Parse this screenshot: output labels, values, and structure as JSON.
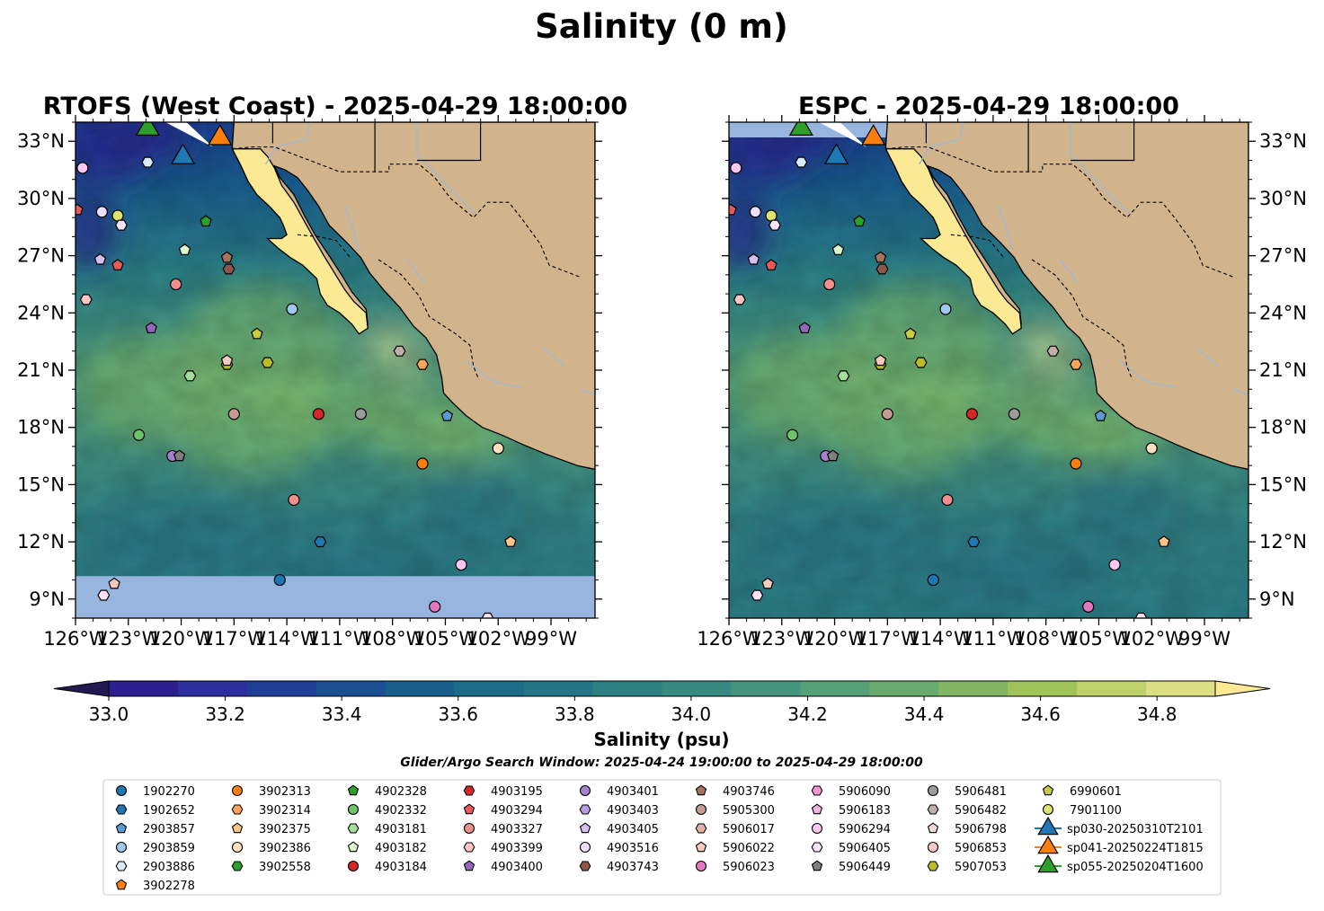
{
  "title": "Salinity (0 m)",
  "panels": [
    {
      "title": "RTOFS (West Coast) - 2025-04-29 18:00:00",
      "tick_side": "left"
    },
    {
      "title": "ESPC - 2025-04-29 18:00:00",
      "tick_side": "right"
    }
  ],
  "colors": {
    "land": "#d2b48c",
    "baja": "#fce994",
    "nodata": "#97b5df",
    "river": "#9fb7d4",
    "colormap": [
      "#231a53",
      "#2d1e8e",
      "#2b2e9c",
      "#1f3f97",
      "#1b4f91",
      "#18608b",
      "#1d6c87",
      "#247585",
      "#2d8082",
      "#368a7f",
      "#43957c",
      "#55a077",
      "#6aaa6e",
      "#83b663",
      "#a0c459",
      "#bfd16a",
      "#dbdf83",
      "#fde994"
    ]
  },
  "colorbar": {
    "label": "Salinity (psu)",
    "ticks": [
      "33.0",
      "33.2",
      "33.4",
      "33.6",
      "33.8",
      "34.0",
      "34.2",
      "34.4",
      "34.6",
      "34.8"
    ]
  },
  "search_window": "Glider/Argo Search Window: 2025-04-24 19:00:00 to 2025-04-29 18:00:00",
  "chart_data": {
    "type": "scatter",
    "variable": "Salinity (psu)",
    "depth": "0 m",
    "xlabel": "",
    "ylabel": "",
    "xlim": [
      -126,
      -96.5
    ],
    "ylim": [
      8,
      34
    ],
    "xticks": [
      "126°W",
      "123°W",
      "120°W",
      "117°W",
      "114°W",
      "111°W",
      "108°W",
      "105°W",
      "102°W",
      "99°W"
    ],
    "yticks": [
      "9°N",
      "12°N",
      "15°N",
      "18°N",
      "21°N",
      "24°N",
      "27°N",
      "30°N",
      "33°N"
    ],
    "color_range": [
      32.9,
      34.9
    ],
    "legend": [
      {
        "name": "1902270",
        "marker": "circle",
        "color": "#1f77b4"
      },
      {
        "name": "1902652",
        "marker": "hexagon",
        "color": "#1f77b4"
      },
      {
        "name": "2903857",
        "marker": "pentagon",
        "color": "#5a9bd5"
      },
      {
        "name": "2903859",
        "marker": "circle",
        "color": "#9ec9ec"
      },
      {
        "name": "2903886",
        "marker": "hexagon",
        "color": "#d7ecf8"
      },
      {
        "name": "3902278",
        "marker": "pentagon",
        "color": "#ff7f0e"
      },
      {
        "name": "3902313",
        "marker": "circle",
        "color": "#ff7f0e"
      },
      {
        "name": "3902314",
        "marker": "hexagon",
        "color": "#ffa55a"
      },
      {
        "name": "3902375",
        "marker": "pentagon",
        "color": "#ffc587"
      },
      {
        "name": "3902386",
        "marker": "circle",
        "color": "#ffe0c2"
      },
      {
        "name": "3902558",
        "marker": "hexagon",
        "color": "#2ca02c"
      },
      {
        "name": "4902328",
        "marker": "pentagon",
        "color": "#2ca02c"
      },
      {
        "name": "4902332",
        "marker": "circle",
        "color": "#6cc36c"
      },
      {
        "name": "4903181",
        "marker": "hexagon",
        "color": "#a6dc9c"
      },
      {
        "name": "4903182",
        "marker": "pentagon",
        "color": "#dff7cf"
      },
      {
        "name": "4903184",
        "marker": "circle",
        "color": "#d62728"
      },
      {
        "name": "4903195",
        "marker": "hexagon",
        "color": "#d62728"
      },
      {
        "name": "4903294",
        "marker": "pentagon",
        "color": "#e8595a"
      },
      {
        "name": "4903327",
        "marker": "circle",
        "color": "#f08f8e"
      },
      {
        "name": "4903399",
        "marker": "hexagon",
        "color": "#ffc6c4"
      },
      {
        "name": "4903400",
        "marker": "pentagon",
        "color": "#9467bd"
      },
      {
        "name": "4903401",
        "marker": "circle",
        "color": "#a57fd0"
      },
      {
        "name": "4903403",
        "marker": "hexagon",
        "color": "#bc9ee0"
      },
      {
        "name": "4903405",
        "marker": "pentagon",
        "color": "#d4bfee"
      },
      {
        "name": "4903516",
        "marker": "circle",
        "color": "#ecdfff"
      },
      {
        "name": "4903743",
        "marker": "hexagon",
        "color": "#8c564b"
      },
      {
        "name": "4903746",
        "marker": "pentagon",
        "color": "#a8725f"
      },
      {
        "name": "5905300",
        "marker": "circle",
        "color": "#c49c94"
      },
      {
        "name": "5906017",
        "marker": "hexagon",
        "color": "#e2b2a4"
      },
      {
        "name": "5906022",
        "marker": "pentagon",
        "color": "#f7cbbc"
      },
      {
        "name": "5906023",
        "marker": "circle",
        "color": "#e377c2"
      },
      {
        "name": "5906090",
        "marker": "hexagon",
        "color": "#ef96d8"
      },
      {
        "name": "5906183",
        "marker": "pentagon",
        "color": "#f7b2e4"
      },
      {
        "name": "5906294",
        "marker": "circle",
        "color": "#fbc9ef"
      },
      {
        "name": "5906405",
        "marker": "hexagon",
        "color": "#fde3f6"
      },
      {
        "name": "5906449",
        "marker": "pentagon",
        "color": "#7f7f7f"
      },
      {
        "name": "5906481",
        "marker": "circle",
        "color": "#9c9c9c"
      },
      {
        "name": "5906482",
        "marker": "hexagon",
        "color": "#c0aea8"
      },
      {
        "name": "5906798",
        "marker": "pentagon",
        "color": "#f2dcd8"
      },
      {
        "name": "5906853",
        "marker": "circle",
        "color": "#ffcaca"
      },
      {
        "name": "5907053",
        "marker": "hexagon",
        "color": "#bcbd22"
      },
      {
        "name": "6990601",
        "marker": "pentagon",
        "color": "#c9cc3f"
      },
      {
        "name": "7901100",
        "marker": "circle",
        "color": "#dde36f"
      },
      {
        "name": "sp030-20250310T2101",
        "marker": "triangle",
        "color": "#1f77b4"
      },
      {
        "name": "sp041-20250224T1815",
        "marker": "triangle",
        "color": "#ff7f0e"
      },
      {
        "name": "sp055-20250204T1600",
        "marker": "triangle",
        "color": "#2ca02c"
      }
    ],
    "points": [
      {
        "lon": -125.6,
        "lat": 31.6,
        "marker": "circle",
        "color": "#fbc9ef"
      },
      {
        "lon": -125.9,
        "lat": 29.4,
        "marker": "pentagon",
        "color": "#e8595a"
      },
      {
        "lon": -124.5,
        "lat": 29.3,
        "marker": "circle",
        "color": "#ecdfff"
      },
      {
        "lon": -123.6,
        "lat": 29.1,
        "marker": "circle",
        "color": "#dde36f"
      },
      {
        "lon": -123.4,
        "lat": 28.6,
        "marker": "hexagon",
        "color": "#fde3f6"
      },
      {
        "lon": -121.9,
        "lat": 31.9,
        "marker": "hexagon",
        "color": "#d7ecf8"
      },
      {
        "lon": -118.6,
        "lat": 28.8,
        "marker": "pentagon",
        "color": "#2ca02c"
      },
      {
        "lon": -124.6,
        "lat": 26.8,
        "marker": "pentagon",
        "color": "#d4bfee"
      },
      {
        "lon": -123.6,
        "lat": 26.5,
        "marker": "pentagon",
        "color": "#e8595a"
      },
      {
        "lon": -119.8,
        "lat": 27.3,
        "marker": "pentagon",
        "color": "#dff7cf"
      },
      {
        "lon": -117.4,
        "lat": 26.9,
        "marker": "pentagon",
        "color": "#a8725f"
      },
      {
        "lon": -117.3,
        "lat": 26.3,
        "marker": "hexagon",
        "color": "#8c564b"
      },
      {
        "lon": -120.3,
        "lat": 25.5,
        "marker": "circle",
        "color": "#f08f8e"
      },
      {
        "lon": -125.4,
        "lat": 24.7,
        "marker": "hexagon",
        "color": "#ffc6c4"
      },
      {
        "lon": -113.7,
        "lat": 24.2,
        "marker": "circle",
        "color": "#9ec9ec"
      },
      {
        "lon": -121.7,
        "lat": 23.2,
        "marker": "pentagon",
        "color": "#9467bd"
      },
      {
        "lon": -115.7,
        "lat": 22.9,
        "marker": "pentagon",
        "color": "#c9cc3f"
      },
      {
        "lon": -117.4,
        "lat": 21.3,
        "marker": "hexagon",
        "color": "#bcbd22"
      },
      {
        "lon": -117.4,
        "lat": 21.5,
        "marker": "pentagon",
        "color": "#f7cbbc"
      },
      {
        "lon": -115.1,
        "lat": 21.4,
        "marker": "hexagon",
        "color": "#bcbd22"
      },
      {
        "lon": -119.5,
        "lat": 20.7,
        "marker": "hexagon",
        "color": "#a6dc9c"
      },
      {
        "lon": -107.6,
        "lat": 22.0,
        "marker": "hexagon",
        "color": "#c0aea8"
      },
      {
        "lon": -106.3,
        "lat": 21.3,
        "marker": "hexagon",
        "color": "#ffa55a"
      },
      {
        "lon": -117.0,
        "lat": 18.7,
        "marker": "circle",
        "color": "#c49c94"
      },
      {
        "lon": -112.2,
        "lat": 18.7,
        "marker": "circle",
        "color": "#d62728"
      },
      {
        "lon": -109.8,
        "lat": 18.7,
        "marker": "circle",
        "color": "#9c9c9c"
      },
      {
        "lon": -104.9,
        "lat": 18.6,
        "marker": "pentagon",
        "color": "#5a9bd5"
      },
      {
        "lon": -122.4,
        "lat": 17.6,
        "marker": "circle",
        "color": "#6cc36c"
      },
      {
        "lon": -120.5,
        "lat": 16.5,
        "marker": "circle",
        "color": "#a57fd0"
      },
      {
        "lon": -120.1,
        "lat": 16.5,
        "marker": "pentagon",
        "color": "#7f7f7f"
      },
      {
        "lon": -106.3,
        "lat": 16.1,
        "marker": "circle",
        "color": "#ff7f0e"
      },
      {
        "lon": -102.0,
        "lat": 16.9,
        "marker": "circle",
        "color": "#ffe0c2"
      },
      {
        "lon": -113.6,
        "lat": 14.2,
        "marker": "circle",
        "color": "#f08f8e"
      },
      {
        "lon": -112.1,
        "lat": 12.0,
        "marker": "hexagon",
        "color": "#1f77b4"
      },
      {
        "lon": -101.3,
        "lat": 12.0,
        "marker": "pentagon",
        "color": "#ffc587"
      },
      {
        "lon": -114.4,
        "lat": 10.0,
        "marker": "circle",
        "color": "#1f77b4"
      },
      {
        "lon": -104.1,
        "lat": 10.8,
        "marker": "circle",
        "color": "#fbc9ef"
      },
      {
        "lon": -105.6,
        "lat": 8.6,
        "marker": "circle",
        "color": "#e377c2"
      },
      {
        "lon": -102.6,
        "lat": 8.0,
        "marker": "hexagon",
        "color": "#fde3f6"
      },
      {
        "lon": -123.8,
        "lat": 9.8,
        "marker": "pentagon",
        "color": "#f7cbbc"
      },
      {
        "lon": -124.4,
        "lat": 9.2,
        "marker": "hexagon",
        "color": "#fde3f6"
      },
      {
        "lon": -121.9,
        "lat": 33.8,
        "marker": "triangle",
        "color": "#2ca02c"
      },
      {
        "lon": -119.9,
        "lat": 32.3,
        "marker": "triangle",
        "color": "#1f77b4"
      },
      {
        "lon": -117.8,
        "lat": 33.3,
        "marker": "triangle",
        "color": "#ff7f0e"
      }
    ]
  }
}
